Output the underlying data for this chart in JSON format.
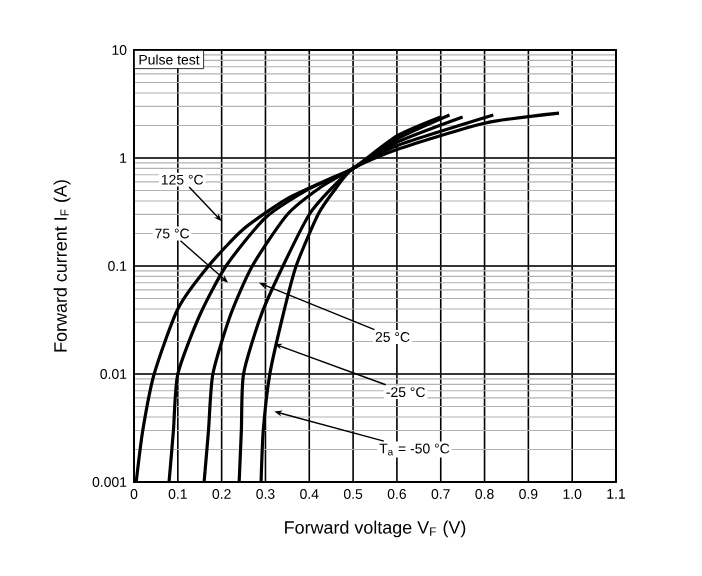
{
  "chart_data": {
    "type": "line",
    "log": "y",
    "xlabel": "Forward voltage  V$_{F}$  (V)",
    "ylabel": "Forward current  I$_{F}$  (A)",
    "xlim": [
      0,
      1.1
    ],
    "ylim": [
      0.001,
      10
    ],
    "xticks": [
      0,
      0.1,
      0.2,
      0.3,
      0.4,
      0.5,
      0.6,
      0.7,
      0.8,
      0.9,
      {
        "value": 1.0,
        "label": "1.0"
      },
      1.1
    ],
    "yticks": [
      0.001,
      0.01,
      0.1,
      1,
      10
    ],
    "grid": true,
    "marker": "none",
    "line_style": "solid",
    "series": [
      {
        "color": "#000000",
        "x": [
          0.005,
          0.02,
          0.046,
          0.1,
          0.17,
          0.25,
          0.35,
          0.45,
          0.5,
          0.6,
          0.7
        ],
        "values": [
          0.001,
          0.003,
          0.01,
          0.04,
          0.1,
          0.22,
          0.42,
          0.65,
          0.8,
          1.6,
          2.4
        ]
      },
      {
        "color": "#000000",
        "x": [
          0.08,
          0.09,
          0.1,
          0.15,
          0.21,
          0.3,
          0.4,
          0.5,
          0.6,
          0.72
        ],
        "values": [
          0.001,
          0.003,
          0.01,
          0.035,
          0.1,
          0.28,
          0.52,
          0.8,
          1.5,
          2.5
        ]
      },
      {
        "color": "#000000",
        "x": [
          0.16,
          0.17,
          0.18,
          0.22,
          0.27,
          0.35,
          0.43,
          0.5,
          0.6,
          0.75
        ],
        "values": [
          0.001,
          0.003,
          0.01,
          0.035,
          0.1,
          0.3,
          0.55,
          0.8,
          1.4,
          2.4
        ]
      },
      {
        "color": "#000000",
        "x": [
          0.24,
          0.245,
          0.25,
          0.29,
          0.34,
          0.4,
          0.45,
          0.5,
          0.6,
          0.82
        ],
        "values": [
          0.001,
          0.003,
          0.01,
          0.035,
          0.1,
          0.3,
          0.52,
          0.8,
          1.3,
          2.5
        ]
      },
      {
        "color": "#000000",
        "x": [
          0.29,
          0.295,
          0.31,
          0.34,
          0.37,
          0.42,
          0.46,
          0.5,
          0.6,
          0.8,
          0.97
        ],
        "values": [
          0.001,
          0.003,
          0.01,
          0.035,
          0.1,
          0.3,
          0.52,
          0.8,
          1.2,
          2.1,
          2.6
        ]
      }
    ],
    "annotations": [
      "Pulse test",
      {
        "text": "125 °C",
        "x": 0.2,
        "y": 0.26
      },
      {
        "text": "75 °C",
        "x": 0.215,
        "y": 0.07
      },
      {
        "text": "25 °C",
        "x": 0.285,
        "y": 0.07
      },
      {
        "text": "-25 °C",
        "x": 0.32,
        "y": 0.019
      },
      {
        "text": "T$_{a}$ = -50 °C",
        "x": 0.32,
        "y": 0.0045
      }
    ]
  }
}
